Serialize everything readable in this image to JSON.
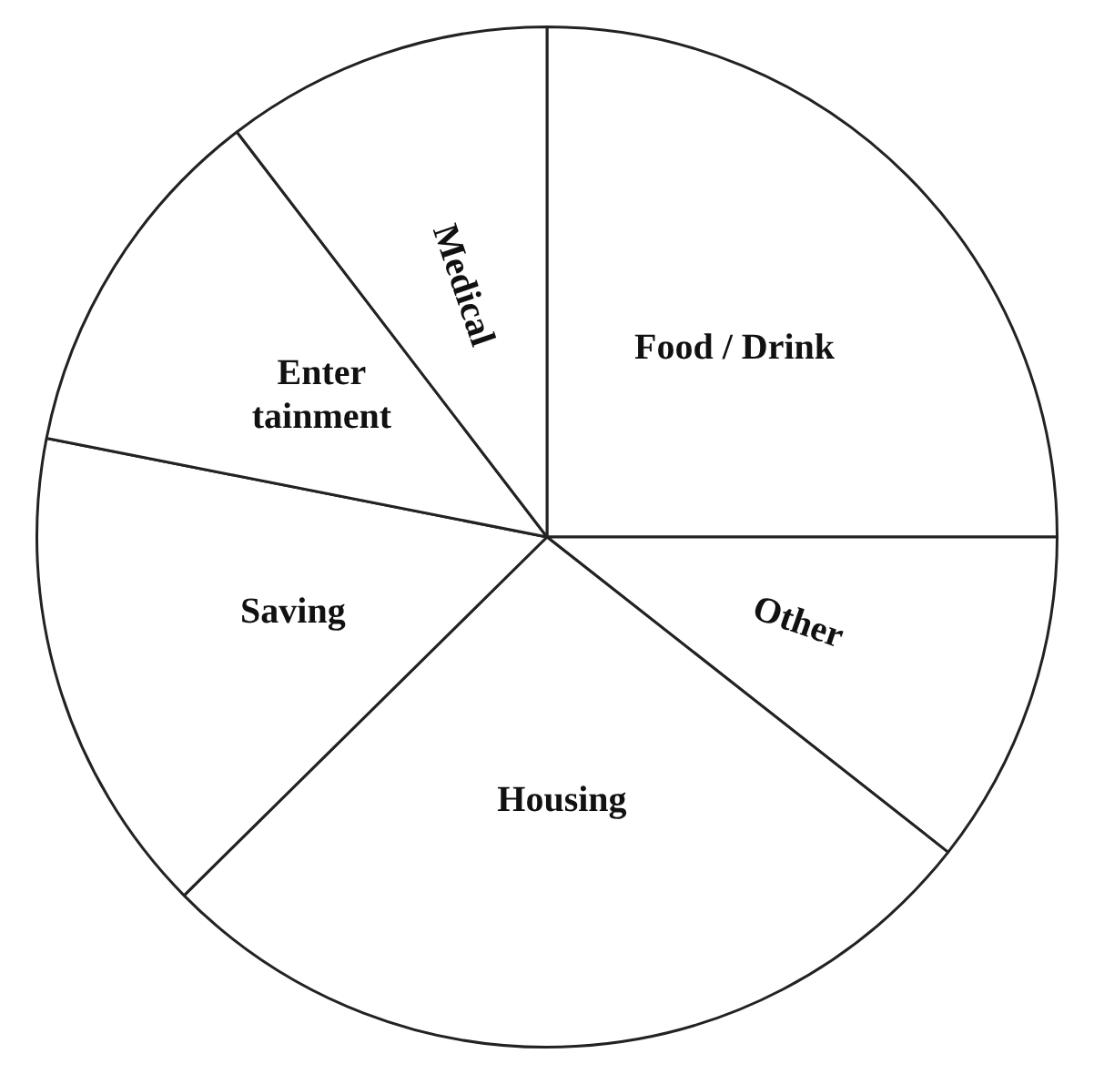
{
  "chart_data": {
    "type": "pie",
    "categories": [
      "Food / Drink",
      "Other",
      "Housing",
      "Saving",
      "Enter tainment",
      "Medical"
    ],
    "values": [
      25,
      10.6,
      27,
      15.5,
      11.5,
      10.4
    ],
    "colors": [
      "#ffffff",
      "#ffffff",
      "#ffffff",
      "#ffffff",
      "#ffffff",
      "#ffffff"
    ],
    "legend": false
  }
}
